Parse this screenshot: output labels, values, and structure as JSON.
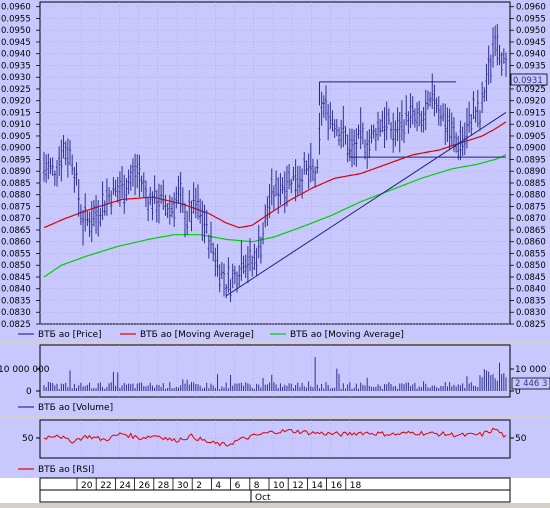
{
  "chart_data": [
    {
      "type": "line",
      "panel": "price",
      "ylim": [
        0.0825,
        0.0962
      ],
      "y_ticks": [
        "0.0960",
        "0.0955",
        "0.0950",
        "0.0945",
        "0.0940",
        "0.0935",
        "0.0930",
        "0.0925",
        "0.0920",
        "0.0915",
        "0.0910",
        "0.0905",
        "0.0900",
        "0.0895",
        "0.0890",
        "0.0885",
        "0.0880",
        "0.0875",
        "0.0870",
        "0.0865",
        "0.0860",
        "0.0855",
        "0.0850",
        "0.0845",
        "0.0840",
        "0.0835",
        "0.0830",
        "0.0825"
      ],
      "last_value_label": "0.0931",
      "series": [
        {
          "name": "ВТБ ао [Price]",
          "color": "#303090"
        },
        {
          "name": "ВТБ ао [Moving Average]",
          "color": "#e00000"
        },
        {
          "name": "ВТБ ао [Moving Average]",
          "color": "#00d000"
        }
      ],
      "price_points": [
        [
          0,
          0.0892
        ],
        [
          5,
          0.089
        ],
        [
          9,
          0.09
        ],
        [
          13,
          0.0896
        ],
        [
          18,
          0.0868
        ],
        [
          24,
          0.0872
        ],
        [
          30,
          0.088
        ],
        [
          37,
          0.0884
        ],
        [
          43,
          0.089
        ],
        [
          48,
          0.0878
        ],
        [
          53,
          0.0878
        ],
        [
          58,
          0.0874
        ],
        [
          62,
          0.088
        ],
        [
          66,
          0.087
        ],
        [
          70,
          0.0876
        ],
        [
          74,
          0.0868
        ],
        [
          78,
          0.0856
        ],
        [
          84,
          0.0842
        ],
        [
          88,
          0.0845
        ],
        [
          92,
          0.0854
        ],
        [
          96,
          0.085
        ],
        [
          100,
          0.086
        ],
        [
          104,
          0.0878
        ],
        [
          110,
          0.0885
        ],
        [
          116,
          0.0888
        ],
        [
          122,
          0.089
        ],
        [
          126,
          0.0888
        ],
        [
          128,
          0.0918
        ],
        [
          132,
          0.0914
        ],
        [
          138,
          0.0906
        ],
        [
          142,
          0.0898
        ],
        [
          146,
          0.0904
        ],
        [
          150,
          0.0902
        ],
        [
          156,
          0.0912
        ],
        [
          162,
          0.0906
        ],
        [
          168,
          0.0914
        ],
        [
          174,
          0.091
        ],
        [
          180,
          0.0922
        ],
        [
          186,
          0.091
        ],
        [
          190,
          0.0902
        ],
        [
          194,
          0.0904
        ],
        [
          198,
          0.0916
        ],
        [
          201,
          0.0912
        ],
        [
          203,
          0.0924
        ],
        [
          206,
          0.0936
        ],
        [
          208,
          0.095
        ],
        [
          211,
          0.094
        ],
        [
          213,
          0.0931
        ]
      ],
      "ma_red": [
        [
          0,
          0.0866
        ],
        [
          10,
          0.087
        ],
        [
          22,
          0.0874
        ],
        [
          36,
          0.0878
        ],
        [
          50,
          0.0879
        ],
        [
          64,
          0.0876
        ],
        [
          76,
          0.0872
        ],
        [
          84,
          0.0868
        ],
        [
          90,
          0.0866
        ],
        [
          96,
          0.0867
        ],
        [
          104,
          0.0872
        ],
        [
          114,
          0.0878
        ],
        [
          124,
          0.0883
        ],
        [
          134,
          0.0887
        ],
        [
          146,
          0.0889
        ],
        [
          158,
          0.0893
        ],
        [
          170,
          0.0897
        ],
        [
          182,
          0.0899
        ],
        [
          192,
          0.0902
        ],
        [
          202,
          0.0905
        ],
        [
          208,
          0.0908
        ],
        [
          213,
          0.0911
        ]
      ],
      "ma_green": [
        [
          0,
          0.0845
        ],
        [
          8,
          0.085
        ],
        [
          20,
          0.0854
        ],
        [
          34,
          0.0858
        ],
        [
          48,
          0.0861
        ],
        [
          60,
          0.0863
        ],
        [
          72,
          0.0863
        ],
        [
          84,
          0.0861
        ],
        [
          96,
          0.086
        ],
        [
          106,
          0.0862
        ],
        [
          118,
          0.0866
        ],
        [
          132,
          0.0871
        ],
        [
          146,
          0.0877
        ],
        [
          160,
          0.0882
        ],
        [
          174,
          0.0887
        ],
        [
          188,
          0.0891
        ],
        [
          200,
          0.0893
        ],
        [
          208,
          0.0895
        ],
        [
          213,
          0.0897
        ]
      ]
    },
    {
      "type": "bar",
      "panel": "volume",
      "series": [
        {
          "name": "ВТБ ао [Volume]",
          "color": "#303090"
        }
      ],
      "y_ticks": [
        "10 000 000",
        "0"
      ],
      "left_tick_label": "10 000 000",
      "last_value_label": "2 446 3"
    },
    {
      "type": "line",
      "panel": "rsi",
      "series": [
        {
          "name": "ВТБ ао [RSI]",
          "color": "#e00000"
        }
      ],
      "y_ticks": [
        "50"
      ],
      "rsi_points": [
        [
          0,
          50
        ],
        [
          6,
          54
        ],
        [
          12,
          46
        ],
        [
          20,
          52
        ],
        [
          28,
          48
        ],
        [
          36,
          55
        ],
        [
          44,
          50
        ],
        [
          52,
          53
        ],
        [
          60,
          47
        ],
        [
          68,
          52
        ],
        [
          76,
          45
        ],
        [
          84,
          42
        ],
        [
          90,
          48
        ],
        [
          98,
          53
        ],
        [
          106,
          57
        ],
        [
          114,
          58
        ],
        [
          122,
          56
        ],
        [
          130,
          55
        ],
        [
          138,
          54
        ],
        [
          146,
          56
        ],
        [
          154,
          55
        ],
        [
          162,
          54
        ],
        [
          170,
          56
        ],
        [
          178,
          55
        ],
        [
          186,
          54
        ],
        [
          194,
          53
        ],
        [
          202,
          54
        ],
        [
          208,
          60
        ],
        [
          213,
          51
        ]
      ]
    }
  ],
  "x_axis": {
    "day_labels": [
      "20",
      "22",
      "24",
      "26",
      "28",
      "30",
      "2",
      "4",
      "6",
      "8",
      "10",
      "12",
      "14",
      "16",
      "18"
    ],
    "month_label": "Oct"
  },
  "colors": {
    "background": "#c8c8ff",
    "grid": "#a0a0c8",
    "frame": "#000000",
    "price": "#303090",
    "ma_red": "#e00000",
    "ma_green": "#00d000"
  }
}
